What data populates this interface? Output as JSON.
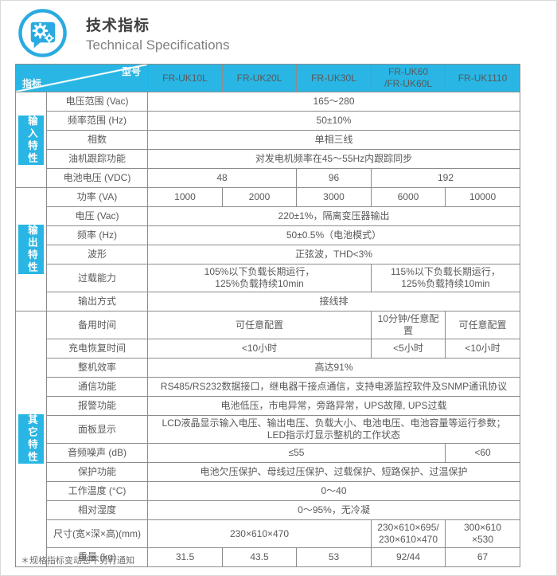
{
  "colors": {
    "accent": "#29B6E5",
    "icon_blue": "#29ABE2",
    "grid": "#8C8C8C",
    "text": "#595959"
  },
  "header": {
    "title_zh": "技术指标",
    "title_en": "Technical Specifications",
    "icon": "gears-speech-bubble-icon"
  },
  "table": {
    "corner": {
      "model_label": "型号",
      "index_label": "指标"
    },
    "columns": [
      {
        "lines": [
          "FR-UK10L"
        ]
      },
      {
        "lines": [
          "FR-UK20L"
        ]
      },
      {
        "lines": [
          "FR-UK30L"
        ]
      },
      {
        "lines": [
          "FR-UK60",
          "/FR-UK60L"
        ]
      },
      {
        "lines": [
          "FR-UK1110"
        ]
      }
    ],
    "sections": [
      {
        "group": "输入特性",
        "rows": [
          {
            "label": "电压范围 (Vac)",
            "cells": [
              {
                "span": 5,
                "lines": [
                  "165～280"
                ]
              }
            ]
          },
          {
            "label": "频率范围 (Hz)",
            "cells": [
              {
                "span": 5,
                "lines": [
                  "50±10%"
                ]
              }
            ]
          },
          {
            "label": "相数",
            "cells": [
              {
                "span": 5,
                "lines": [
                  "单相三线"
                ]
              }
            ]
          },
          {
            "label": "油机跟踪功能",
            "cells": [
              {
                "span": 5,
                "lines": [
                  "对发电机频率在45～55Hz内跟踪同步"
                ]
              }
            ]
          },
          {
            "label": "电池电压 (VDC)",
            "cells": [
              {
                "span": 2,
                "lines": [
                  "48"
                ]
              },
              {
                "span": 1,
                "lines": [
                  "96"
                ]
              },
              {
                "span": 2,
                "lines": [
                  "192"
                ]
              }
            ]
          }
        ]
      },
      {
        "group": "输出特性",
        "rows": [
          {
            "label": "功率 (VA)",
            "cells": [
              {
                "span": 1,
                "lines": [
                  "1000"
                ]
              },
              {
                "span": 1,
                "lines": [
                  "2000"
                ]
              },
              {
                "span": 1,
                "lines": [
                  "3000"
                ]
              },
              {
                "span": 1,
                "lines": [
                  "6000"
                ]
              },
              {
                "span": 1,
                "lines": [
                  "10000"
                ]
              }
            ]
          },
          {
            "label": "电压 (Vac)",
            "cells": [
              {
                "span": 5,
                "lines": [
                  "220±1%，隔离变压器输出"
                ]
              }
            ]
          },
          {
            "label": "频率 (Hz)",
            "cells": [
              {
                "span": 5,
                "lines": [
                  "50±0.5%（电池模式）"
                ]
              }
            ]
          },
          {
            "label": "波形",
            "cells": [
              {
                "span": 5,
                "lines": [
                  "正弦波，THD<3%"
                ]
              }
            ]
          },
          {
            "label": "过载能力",
            "cells": [
              {
                "span": 3,
                "lines": [
                  "105%以下负载长期运行，",
                  "125%负载持续10min"
                ]
              },
              {
                "span": 2,
                "lines": [
                  "115%以下负载长期运行，",
                  "125%负载持续10min"
                ]
              }
            ]
          },
          {
            "label": "输出方式",
            "cells": [
              {
                "span": 5,
                "lines": [
                  "接线排"
                ]
              }
            ]
          }
        ]
      },
      {
        "group": "其它特性",
        "rows": [
          {
            "label": "备用时间",
            "cells": [
              {
                "span": 3,
                "lines": [
                  "可任意配置"
                ]
              },
              {
                "span": 1,
                "lines": [
                  "10分钟/任意配置"
                ]
              },
              {
                "span": 1,
                "lines": [
                  "可任意配置"
                ]
              }
            ]
          },
          {
            "label": "充电恢复时间",
            "cells": [
              {
                "span": 3,
                "lines": [
                  "<10小时"
                ]
              },
              {
                "span": 1,
                "lines": [
                  "<5小时"
                ]
              },
              {
                "span": 1,
                "lines": [
                  "<10小时"
                ]
              }
            ]
          },
          {
            "label": "整机效率",
            "cells": [
              {
                "span": 5,
                "lines": [
                  "高达91%"
                ]
              }
            ]
          },
          {
            "label": "通信功能",
            "cells": [
              {
                "span": 5,
                "lines": [
                  "RS485/RS232数据接口，继电器干接点通信，支持电源监控软件及SNMP通讯协议"
                ]
              }
            ]
          },
          {
            "label": "报警功能",
            "cells": [
              {
                "span": 5,
                "lines": [
                  "电池低压，市电异常，旁路异常，UPS故障, UPS过载"
                ]
              }
            ]
          },
          {
            "label": "面板显示",
            "cells": [
              {
                "span": 5,
                "lines": [
                  "LCD液晶显示输入电压、输出电压、负载大小、电池电压、电池容量等运行参数；",
                  "LED指示灯显示整机的工作状态"
                ]
              }
            ]
          },
          {
            "label": "音频噪声 (dB)",
            "cells": [
              {
                "span": 4,
                "lines": [
                  "≤55"
                ]
              },
              {
                "span": 1,
                "lines": [
                  "<60"
                ]
              }
            ]
          },
          {
            "label": "保护功能",
            "cells": [
              {
                "span": 5,
                "lines": [
                  "电池欠压保护、母线过压保护、过载保护、短路保护、过温保护"
                ]
              }
            ]
          },
          {
            "label": "工作温度 (°C)",
            "cells": [
              {
                "span": 5,
                "lines": [
                  "0～40"
                ]
              }
            ]
          },
          {
            "label": "相对湿度",
            "cells": [
              {
                "span": 5,
                "lines": [
                  "0～95%，无冷凝"
                ]
              }
            ]
          },
          {
            "label": "尺寸(宽×深×高)(mm)",
            "cells": [
              {
                "span": 3,
                "lines": [
                  "230×610×470"
                ]
              },
              {
                "span": 1,
                "lines": [
                  "230×610×695/",
                  "230×610×470"
                ]
              },
              {
                "span": 1,
                "lines": [
                  "300×610",
                  "×530"
                ]
              }
            ]
          },
          {
            "label": "重量 (kg)",
            "cells": [
              {
                "span": 1,
                "lines": [
                  "31.5"
                ]
              },
              {
                "span": 1,
                "lines": [
                  "43.5"
                ]
              },
              {
                "span": 1,
                "lines": [
                  "53"
                ]
              },
              {
                "span": 1,
                "lines": [
                  "92/44"
                ]
              },
              {
                "span": 1,
                "lines": [
                  "67"
                ]
              }
            ]
          }
        ]
      }
    ]
  },
  "footnote": "＊规格指标变动恕不另行通知"
}
